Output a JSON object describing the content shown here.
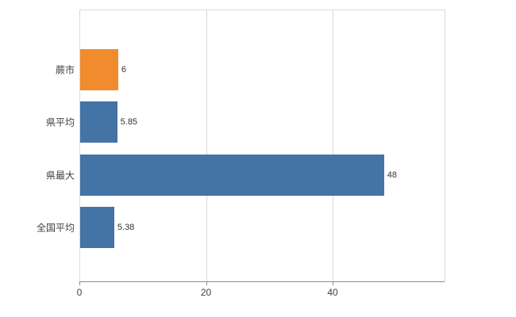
{
  "chart_data": {
    "type": "bar",
    "orientation": "horizontal",
    "title": "",
    "xlabel": "",
    "ylabel": "",
    "categories": [
      "蕨市",
      "県平均",
      "県最大",
      "全国平均"
    ],
    "values": [
      6,
      5.85,
      48,
      5.38
    ],
    "value_labels": [
      "6",
      "5.85",
      "48",
      "5.38"
    ],
    "bar_colors": [
      "#f08c2e",
      "#4473a5",
      "#4473a5",
      "#4473a5"
    ],
    "x_ticks": [
      0,
      20,
      40
    ],
    "x_tick_labels": [
      "0",
      "20",
      "40"
    ],
    "xlim": [
      0,
      57.7
    ],
    "grid": true,
    "legend": false,
    "colors": {
      "grid": "#d9d9d9",
      "axis": "#8c8c8c",
      "text": "#404040",
      "value_text": "#333333",
      "background": "#ffffff"
    }
  }
}
